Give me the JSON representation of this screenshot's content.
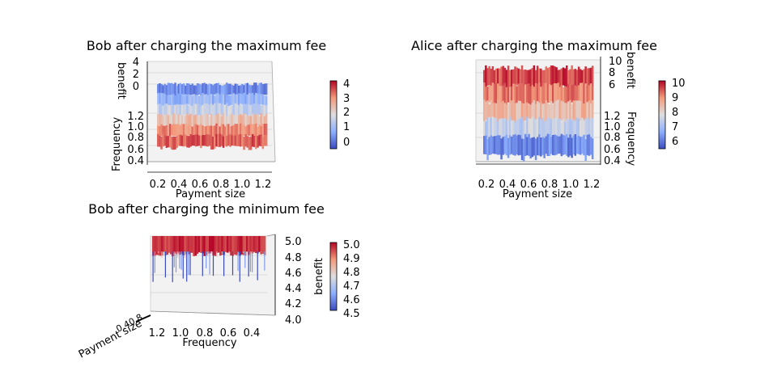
{
  "figure": {
    "cmap_stops": [
      "#3b4cc0",
      "#8db0fe",
      "#dddddd",
      "#f49a7b",
      "#b40426"
    ],
    "pane_color": "#f2f2f2",
    "grid_color": "#c8c8c8"
  },
  "chart_data": [
    {
      "type": "surface",
      "title": "Bob after charging the maximum fee",
      "xlabel": "Payment size",
      "ylabel": "Frequency",
      "zlabel": "benefit",
      "x_range": [
        0.1,
        1.3
      ],
      "y_range": [
        0.35,
        1.3
      ],
      "z_range": [
        0,
        4.3
      ],
      "xticks": [
        "0.2",
        "0.4",
        "0.6",
        "0.8",
        "1.0",
        "1.2"
      ],
      "yticks": [
        "1.2",
        "1.0",
        "0.8",
        "0.6",
        "0.4"
      ],
      "zticks": [
        "4",
        "2",
        "0"
      ],
      "colorbar": {
        "min": -0.5,
        "max": 4.3,
        "ticks": [
          "4",
          "3",
          "2",
          "1",
          "0"
        ]
      },
      "colorbar_label": "",
      "benefit_levels": [
        {
          "frequency": 1.25,
          "benefit": 0.3
        },
        {
          "frequency": 1.15,
          "benefit": 0.9
        },
        {
          "frequency": 1.05,
          "benefit": 1.6
        },
        {
          "frequency": 0.95,
          "benefit": 2.4
        },
        {
          "frequency": 0.85,
          "benefit": 3.2
        },
        {
          "frequency": 0.75,
          "benefit": 3.6
        }
      ]
    },
    {
      "type": "surface",
      "title": "Alice after charging the maximum fee",
      "xlabel": "Payment size",
      "ylabel": "Frequency",
      "zlabel": "benefit",
      "x_range": [
        0.1,
        1.3
      ],
      "y_range": [
        0.35,
        1.3
      ],
      "z_range": [
        5.5,
        10.3
      ],
      "xticks": [
        "0.2",
        "0.4",
        "0.6",
        "0.8",
        "1.0",
        "1.2"
      ],
      "yticks": [
        "1.2",
        "1.0",
        "0.8",
        "0.6",
        "0.4"
      ],
      "zticks": [
        "10",
        "8",
        "6"
      ],
      "colorbar": {
        "min": 5.6,
        "max": 10.3,
        "ticks": [
          "10",
          "9",
          "8",
          "7",
          "6"
        ]
      },
      "colorbar_label": "",
      "benefit_levels": [
        {
          "frequency": 1.3,
          "benefit": 9.8
        },
        {
          "frequency": 1.1,
          "benefit": 9.3
        },
        {
          "frequency": 0.9,
          "benefit": 8.6
        },
        {
          "frequency": 0.7,
          "benefit": 7.6
        },
        {
          "frequency": 0.55,
          "benefit": 6.3
        }
      ]
    },
    {
      "type": "surface",
      "title": "Bob after charging the minimum fee",
      "xlabel": "Frequency",
      "ylabel": "Payment size",
      "zlabel": "benefit",
      "x_range": [
        1.3,
        0.35
      ],
      "z_range": [
        4.0,
        5.0
      ],
      "xticks": [
        "1.2",
        "1.0",
        "0.8",
        "0.6",
        "0.4"
      ],
      "zticks": [
        "5.0",
        "4.8",
        "4.6",
        "4.4",
        "4.2",
        "4.0"
      ],
      "colorbar": {
        "min": 4.5,
        "max": 5.0,
        "ticks": [
          "5.0",
          "4.9",
          "4.8",
          "4.7",
          "4.6",
          "4.5"
        ]
      },
      "colorbar_label": "benefit",
      "benefit_levels": [
        {
          "benefit": 5.0
        },
        {
          "benefit": 4.8
        },
        {
          "benefit": 4.6
        },
        {
          "benefit": 4.5
        }
      ]
    }
  ]
}
